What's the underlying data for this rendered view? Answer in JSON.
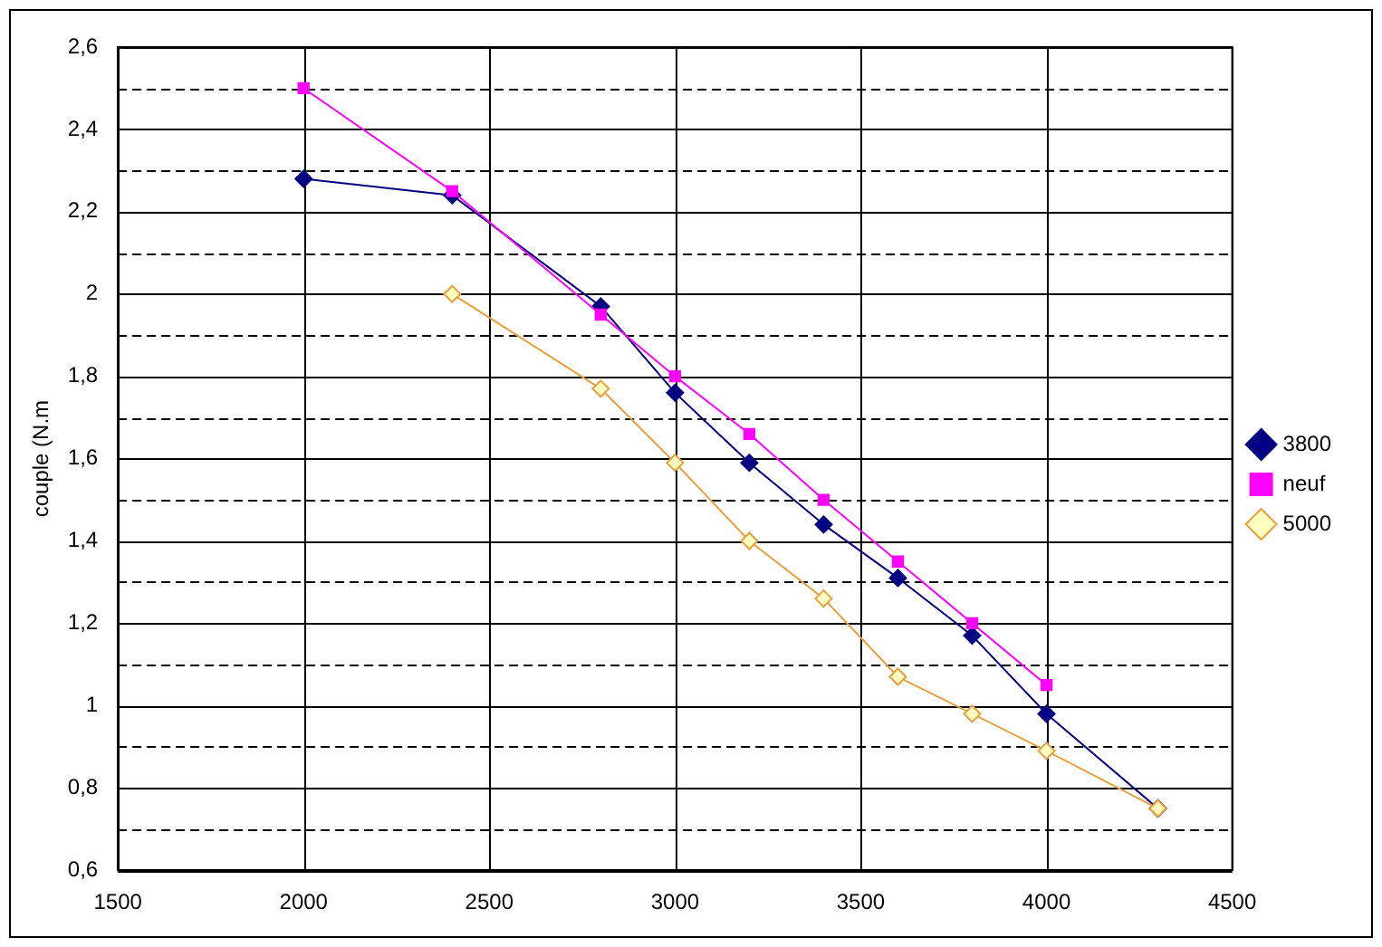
{
  "chart_data": {
    "type": "line",
    "ylabel": "couple (N.m",
    "xlim": [
      1500,
      4500
    ],
    "xticks": [
      1500,
      2000,
      2500,
      3000,
      3500,
      4000,
      4500
    ],
    "ylim": [
      0.6,
      2.6
    ],
    "yticks": [
      {
        "value": 0.6,
        "label": "0,6"
      },
      {
        "value": 0.7,
        "label": null
      },
      {
        "value": 0.8,
        "label": "0,8"
      },
      {
        "value": 0.9,
        "label": null
      },
      {
        "value": 1,
        "label": "1"
      },
      {
        "value": 1.1,
        "label": null
      },
      {
        "value": 1.2,
        "label": "1,2"
      },
      {
        "value": 1.3,
        "label": null
      },
      {
        "value": 1.4,
        "label": "1,4"
      },
      {
        "value": 1.5,
        "label": null
      },
      {
        "value": 1.6,
        "label": "1,6"
      },
      {
        "value": 1.7,
        "label": null
      },
      {
        "value": 1.8,
        "label": "1,8"
      },
      {
        "value": 1.9,
        "label": null
      },
      {
        "value": 2,
        "label": "2"
      },
      {
        "value": 2.1,
        "label": null
      },
      {
        "value": 2.2,
        "label": "2,2"
      },
      {
        "value": 2.3,
        "label": null
      },
      {
        "value": 2.4,
        "label": "2,4"
      },
      {
        "value": 2.5,
        "label": null
      },
      {
        "value": 2.6,
        "label": "2,6"
      }
    ],
    "grid": true,
    "legend": "right",
    "line_style": "solid",
    "series": [
      {
        "name": "3800",
        "color": "#000080",
        "marker": "diamond",
        "x": [
          2000,
          2400,
          2800,
          3000,
          3200,
          3400,
          3600,
          3800,
          4000,
          4300
        ],
        "values": [
          2.28,
          2.24,
          1.97,
          1.76,
          1.59,
          1.44,
          1.31,
          1.17,
          0.98,
          0.75
        ]
      },
      {
        "name": "neuf",
        "color": "#ff00ff",
        "marker": "square",
        "x": [
          2000,
          2400,
          2800,
          3000,
          3200,
          3400,
          3600,
          3800,
          4000
        ],
        "values": [
          2.5,
          2.25,
          1.95,
          1.8,
          1.66,
          1.5,
          1.35,
          1.2,
          1.05
        ]
      },
      {
        "name": "5000",
        "color": "#e8a040",
        "marker": "diamond",
        "x": [
          2400,
          2800,
          3000,
          3200,
          3400,
          3600,
          3800,
          4000,
          4300
        ],
        "values": [
          2.0,
          1.77,
          1.59,
          1.4,
          1.26,
          1.07,
          0.98,
          0.89,
          0.75
        ]
      }
    ]
  }
}
